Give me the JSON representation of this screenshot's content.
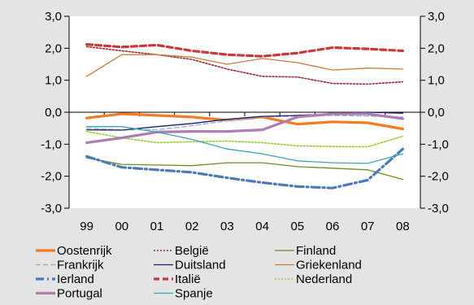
{
  "chart_data": {
    "type": "line",
    "title": "",
    "xlabel": "",
    "ylabel": "",
    "x": [
      "99",
      "00",
      "01",
      "02",
      "03",
      "04",
      "05",
      "06",
      "07",
      "08"
    ],
    "ylim": [
      -3,
      3
    ],
    "y_ticks": [
      "3,0",
      "2,0",
      "1,0",
      "0,0",
      "-1,0",
      "-2,0",
      "-3,0"
    ],
    "y_ticks_right": [
      "3,0",
      "2,0",
      "1,0",
      "0,0",
      "-1,0",
      "-2,0",
      "-3,0"
    ],
    "grid": false,
    "legend_position": "bottom",
    "series": [
      {
        "name": "Oostenrijk",
        "color": "#f47b20",
        "style": "solid-thick",
        "values": [
          -0.18,
          -0.05,
          -0.1,
          -0.15,
          -0.25,
          -0.15,
          -0.37,
          -0.3,
          -0.33,
          -0.52
        ]
      },
      {
        "name": "België",
        "color": "#9b2d3a",
        "style": "dotted",
        "values": [
          2.05,
          1.92,
          1.8,
          1.65,
          1.35,
          1.12,
          1.1,
          0.9,
          0.88,
          0.95
        ]
      },
      {
        "name": "Finland",
        "color": "#6b8e23",
        "style": "solid",
        "values": [
          -1.43,
          -1.63,
          -1.65,
          -1.67,
          -1.58,
          -1.58,
          -1.7,
          -1.75,
          -1.8,
          -2.1
        ]
      },
      {
        "name": "Frankrijk",
        "color": "#9bb2d6",
        "style": "dashed",
        "values": [
          -0.5,
          -0.55,
          -0.55,
          -0.42,
          -0.27,
          -0.15,
          -0.12,
          -0.1,
          -0.12,
          -0.15
        ]
      },
      {
        "name": "Duitsland",
        "color": "#1c1c6e",
        "style": "solid",
        "values": [
          -0.55,
          -0.56,
          -0.45,
          -0.35,
          -0.22,
          -0.13,
          -0.1,
          -0.05,
          0.0,
          -0.03
        ]
      },
      {
        "name": "Griekenland",
        "color": "#c87d3a",
        "style": "solid",
        "values": [
          1.12,
          1.8,
          1.8,
          1.72,
          1.5,
          1.68,
          1.55,
          1.32,
          1.38,
          1.35
        ]
      },
      {
        "name": "Ierland",
        "color": "#4a7ab8",
        "style": "dash-dot-thick",
        "values": [
          -1.38,
          -1.72,
          -1.8,
          -1.88,
          -2.05,
          -2.2,
          -2.32,
          -2.37,
          -2.12,
          -1.15
        ]
      },
      {
        "name": "Italië",
        "color": "#c83a3a",
        "style": "dashed-thick",
        "values": [
          2.12,
          2.04,
          2.1,
          1.92,
          1.8,
          1.75,
          1.85,
          2.02,
          1.98,
          1.92
        ]
      },
      {
        "name": "Nederland",
        "color": "#9acd32",
        "style": "dotted",
        "values": [
          -0.6,
          -0.8,
          -0.95,
          -0.92,
          -0.9,
          -0.95,
          -1.05,
          -1.07,
          -1.08,
          -0.75
        ]
      },
      {
        "name": "Portugal",
        "color": "#b07cb4",
        "style": "solid-thick",
        "values": [
          -0.95,
          -0.8,
          -0.62,
          -0.6,
          -0.6,
          -0.55,
          -0.15,
          -0.05,
          -0.05,
          -0.2
        ]
      },
      {
        "name": "Spanje",
        "color": "#3aa6b4",
        "style": "solid",
        "values": [
          -0.45,
          -0.45,
          -0.62,
          -0.85,
          -1.15,
          -1.3,
          -1.52,
          -1.58,
          -1.6,
          -1.3
        ]
      }
    ]
  }
}
